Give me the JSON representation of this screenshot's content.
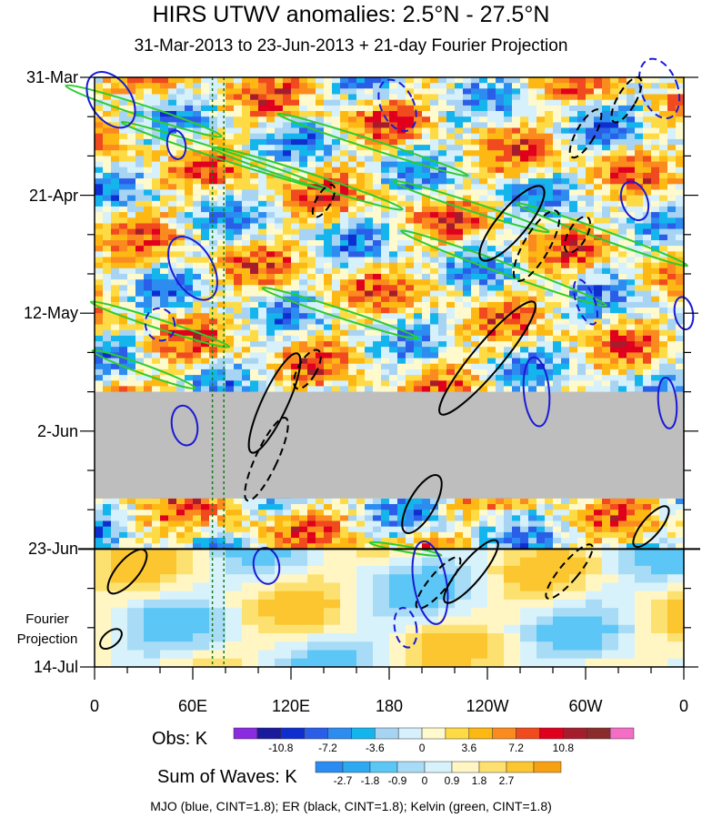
{
  "chart_data": {
    "type": "heatmap",
    "title": "HIRS UTWV anomalies: 2.5°N - 27.5°N",
    "subtitle": "31-Mar-2013 to 23-Jun-2013 + 21-day Fourier Projection",
    "y_tick_labels": [
      "31-Mar",
      "21-Apr",
      "12-May",
      "2-Jun",
      "23-Jun",
      "14-Jul"
    ],
    "x_tick_labels": [
      "0",
      "60E",
      "120E",
      "180",
      "120W",
      "60W",
      "0"
    ],
    "x_range_deg": [
      0,
      360
    ],
    "time_range_days": [
      0,
      105
    ],
    "projection_label": "Fourier Projection",
    "missing_data_days": [
      56,
      75
    ],
    "projection_start_day": 84,
    "legend_obs": {
      "label": "Obs: K",
      "ticks": [
        "-10.8",
        "-7.2",
        "-3.6",
        "0",
        "3.6",
        "7.2",
        "10.8"
      ],
      "colors": [
        "#8a2be2",
        "#1a1a9c",
        "#0f2ecf",
        "#2a5ee8",
        "#2d8cf0",
        "#14b4ec",
        "#a8d4f4",
        "#d6f0fc",
        "#fffacd",
        "#fedb45",
        "#fdb813",
        "#fb8b1e",
        "#f04a1e",
        "#e0001e",
        "#a51d2d",
        "#8b2c2c",
        "#f36ec4"
      ]
    },
    "legend_waves": {
      "label": "Sum of Waves: K",
      "ticks": [
        "-2.7",
        "-1.8",
        "-0.9",
        "0",
        "0.9",
        "1.8",
        "2.7"
      ],
      "colors": [
        "#2a8cf2",
        "#2da9f2",
        "#5cc7f6",
        "#a8dcf6",
        "#d8f2fb",
        "#fff6c4",
        "#fde170",
        "#fbc630",
        "#f7a012"
      ]
    },
    "series": [
      {
        "name": "MJO",
        "color": "blue",
        "cint": 1.8
      },
      {
        "name": "ER",
        "color": "black",
        "cint": 1.8
      },
      {
        "name": "Kelvin",
        "color": "green",
        "cint": 1.8
      }
    ],
    "footer": "MJO (blue, CINT=1.8); ER (black, CINT=1.8); Kelvin (green, CINT=1.8)"
  }
}
